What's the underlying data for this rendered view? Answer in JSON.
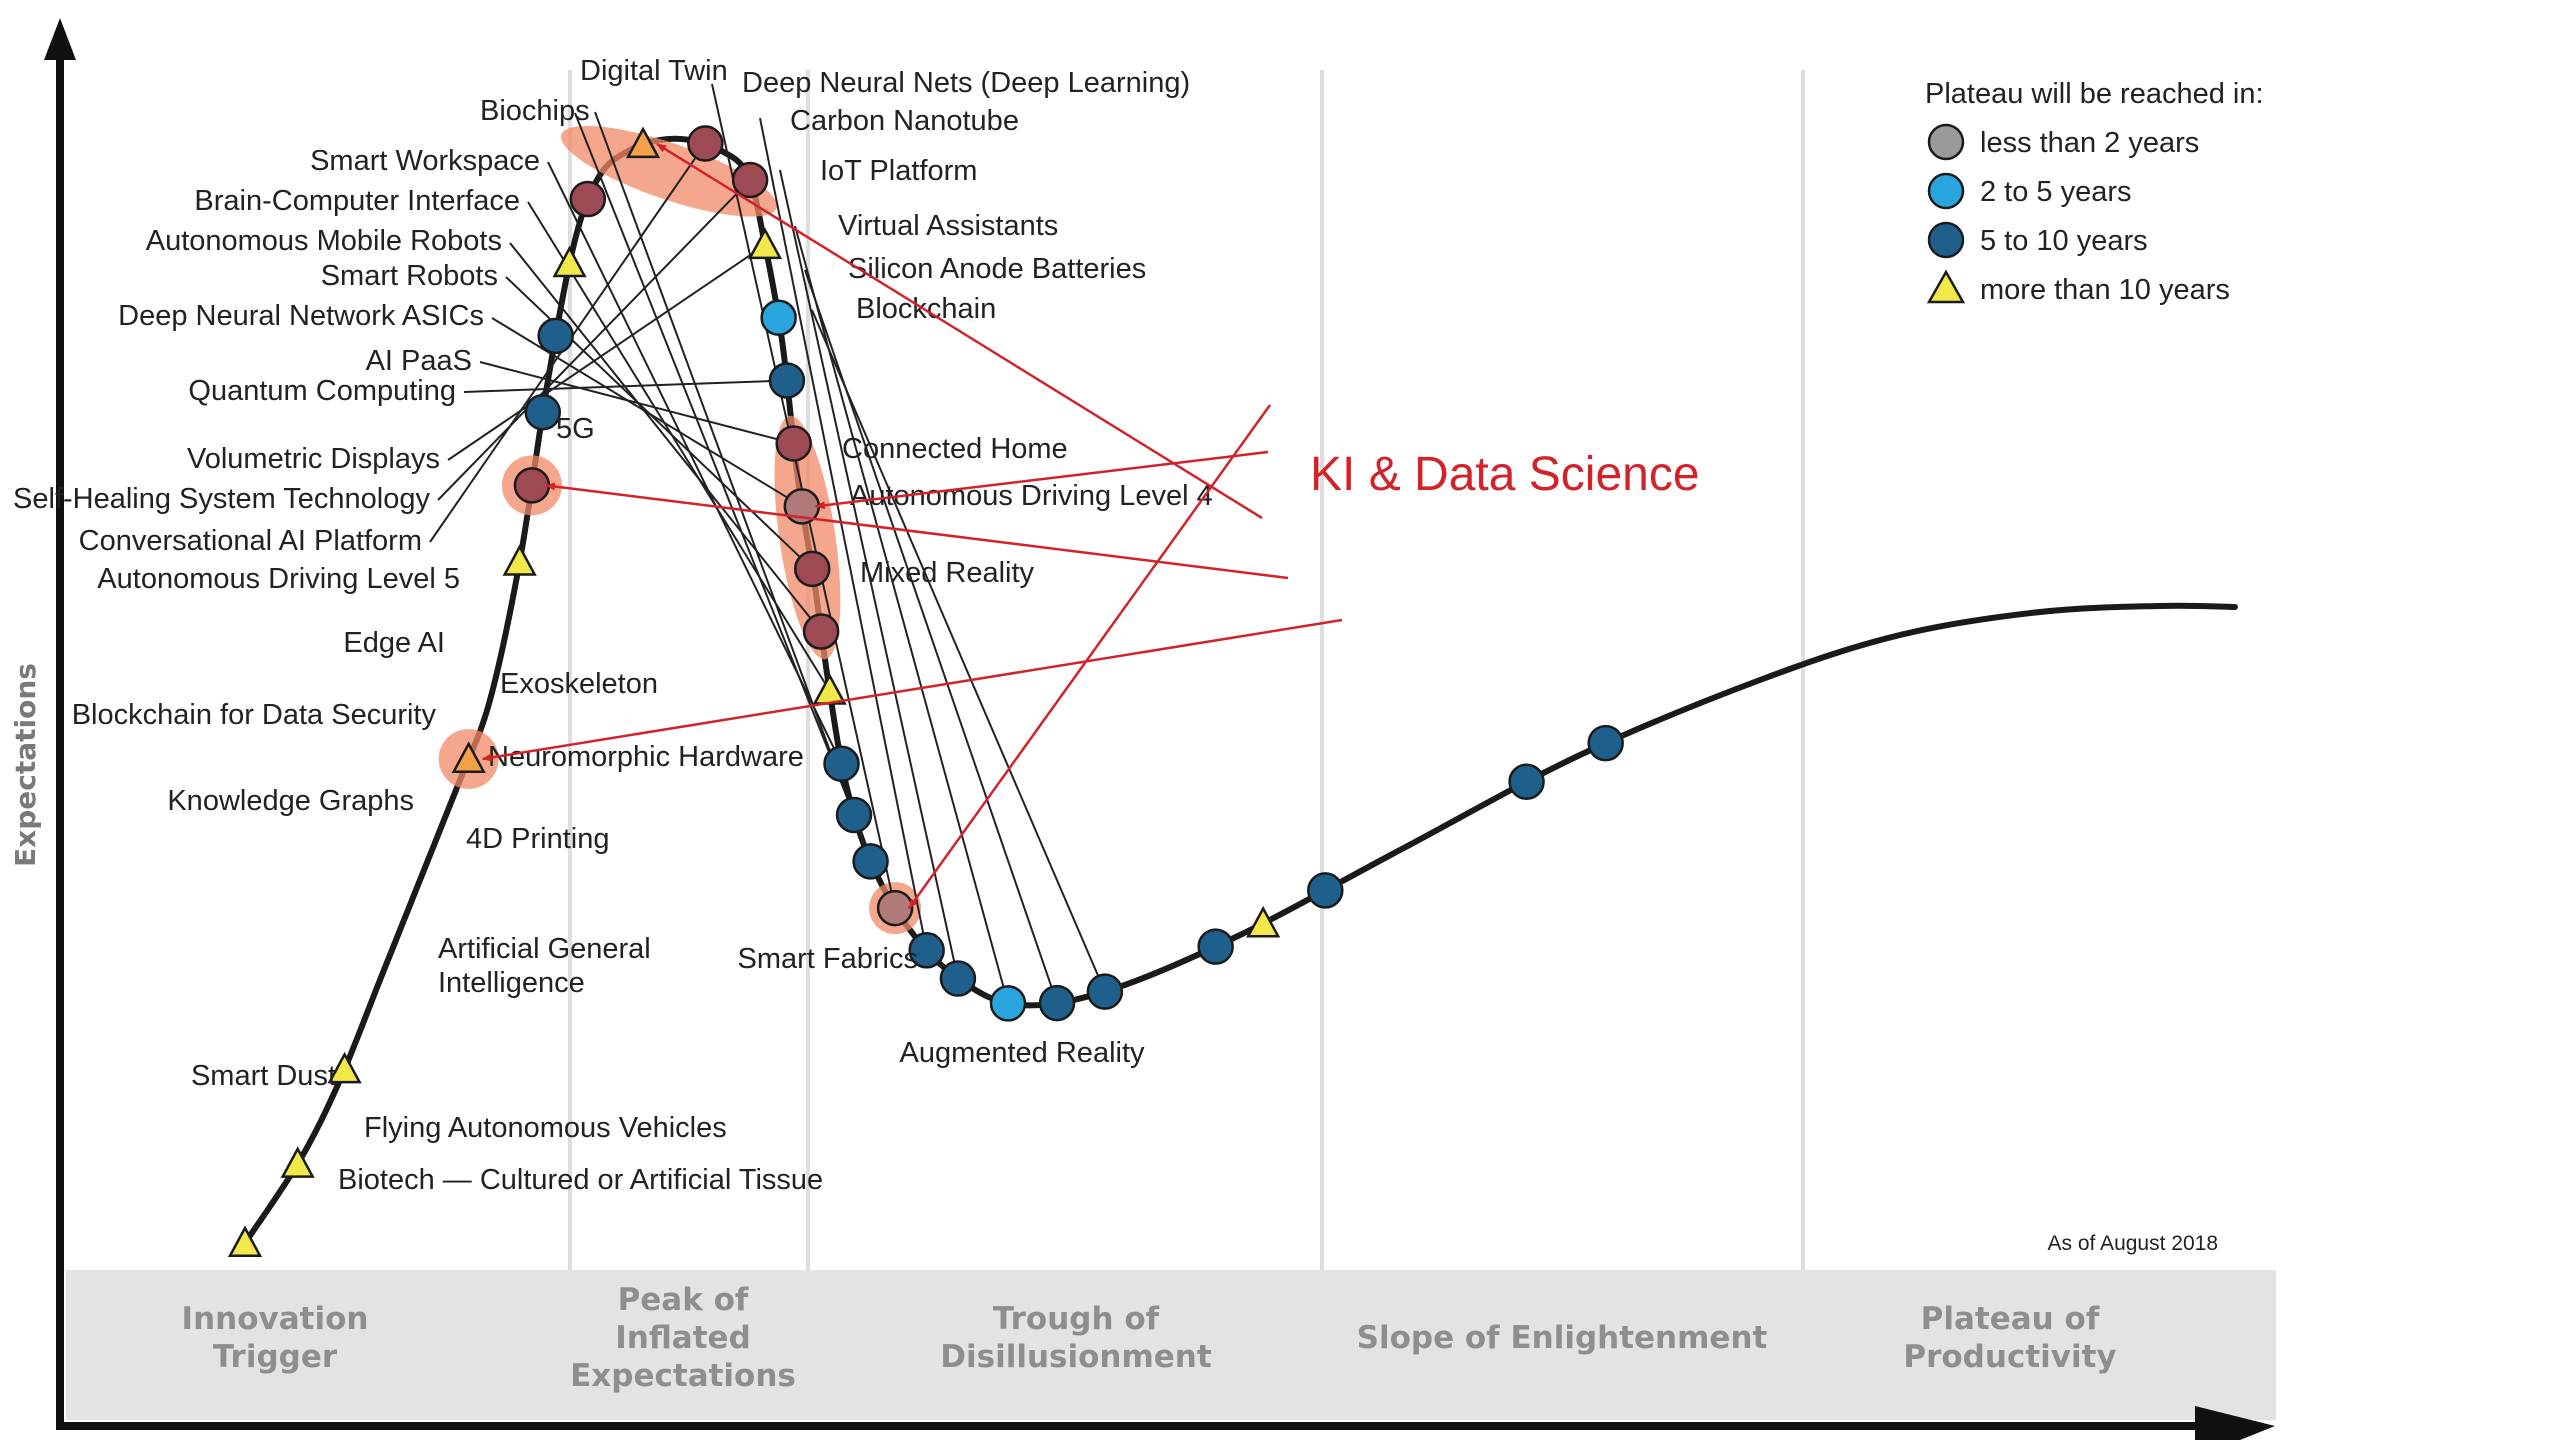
{
  "chart_data": {
    "type": "hype-cycle",
    "ylabel": "Expectations",
    "as_of": "As of August 2018",
    "annotation": "KI & Data Science",
    "colors": {
      "lt2": "#9a9a9a",
      "y2to5": "#29a5dd",
      "y5to10": "#1f5f8b",
      "gt10": "#f2e84a",
      "highlight": "#f08a65",
      "annotation": "#d0232a",
      "curve": "#1a1a1a"
    },
    "legend": {
      "title": "Plateau will be reached in:",
      "items": [
        {
          "key": "lt2",
          "label": "less than 2 years"
        },
        {
          "key": "y2to5",
          "label": "2 to 5 years"
        },
        {
          "key": "y5to10",
          "label": "5 to 10 years"
        },
        {
          "key": "gt10",
          "label": "more than 10 years"
        }
      ]
    },
    "phases": [
      {
        "line1": "Innovation",
        "line2": "Trigger",
        "line3": ""
      },
      {
        "line1": "Peak of",
        "line2": "Inflated",
        "line3": "Expectations"
      },
      {
        "line1": "Trough of",
        "line2": "Disillusionment",
        "line3": ""
      },
      {
        "line1": "Slope of Enlightenment",
        "line2": "",
        "line3": ""
      },
      {
        "line1": "Plateau of",
        "line2": "Productivity",
        "line3": ""
      }
    ],
    "technologies": [
      {
        "name": "Digital Twin",
        "t": 0.28,
        "cat": "y5to10",
        "ai": false
      },
      {
        "name": "Deep Neural Nets (Deep Learning)",
        "t": 0.293,
        "cat": "lt2",
        "ai": true
      },
      {
        "name": "Biochips",
        "t": 0.271,
        "cat": "y5to10",
        "ai": false
      },
      {
        "name": "Carbon Nanotube",
        "t": 0.306,
        "cat": "y5to10",
        "ai": false
      },
      {
        "name": "IoT Platform",
        "t": 0.313,
        "cat": "y5to10",
        "ai": false
      },
      {
        "name": "Smart Workspace",
        "t": 0.262,
        "cat": "y5to10",
        "ai": false
      },
      {
        "name": "Brain-Computer Interface",
        "t": 0.256,
        "cat": "gt10",
        "ai": false
      },
      {
        "name": "Virtual Assistants",
        "t": 0.32,
        "cat": "y2to5",
        "ai": false
      },
      {
        "name": "Autonomous Mobile Robots",
        "t": 0.251,
        "cat": "y5to10",
        "ai": true
      },
      {
        "name": "Smart Robots",
        "t": 0.246,
        "cat": "y5to10",
        "ai": true
      },
      {
        "name": "Silicon Anode Batteries",
        "t": 0.327,
        "cat": "y5to10",
        "ai": false
      },
      {
        "name": "Deep Neural Network ASICs",
        "t": 0.241,
        "cat": "lt2",
        "ai": true
      },
      {
        "name": "Blockchain",
        "t": 0.333,
        "cat": "y5to10",
        "ai": false
      },
      {
        "name": "AI PaaS",
        "t": 0.236,
        "cat": "y5to10",
        "ai": true
      },
      {
        "name": "Quantum Computing",
        "t": 0.231,
        "cat": "y5to10",
        "ai": false
      },
      {
        "name": "5G",
        "t": 0.226,
        "cat": "y2to5",
        "ai": false
      },
      {
        "name": "Connected Home",
        "t": 0.343,
        "cat": "y5to10",
        "ai": false
      },
      {
        "name": "Volumetric Displays",
        "t": 0.221,
        "cat": "gt10",
        "ai": false
      },
      {
        "name": "Autonomous Driving Level 4",
        "t": 0.348,
        "cat": "gt10",
        "ai": false
      },
      {
        "name": "Self-Healing System Technology",
        "t": 0.216,
        "cat": "y5to10",
        "ai": true
      },
      {
        "name": "Conversational AI Platform",
        "t": 0.212,
        "cat": "y5to10",
        "ai": true
      },
      {
        "name": "Autonomous Driving Level 5",
        "t": 0.207,
        "cat": "gt10",
        "ai": true
      },
      {
        "name": "Mixed Reality",
        "t": 0.356,
        "cat": "y5to10",
        "ai": false
      },
      {
        "name": "Edge AI",
        "t": 0.201,
        "cat": "y5to10",
        "ai": true
      },
      {
        "name": "Exoskeleton",
        "t": 0.196,
        "cat": "gt10",
        "ai": false
      },
      {
        "name": "Blockchain for Data Security",
        "t": 0.19,
        "cat": "y5to10",
        "ai": false
      },
      {
        "name": "Neuromorphic Hardware",
        "t": 0.183,
        "cat": "y5to10",
        "ai": false
      },
      {
        "name": "Knowledge Graphs",
        "t": 0.176,
        "cat": "y5to10",
        "ai": true
      },
      {
        "name": "4D Printing",
        "t": 0.17,
        "cat": "gt10",
        "ai": false
      },
      {
        "name": "Artificial General Intelligence",
        "t": 0.15,
        "cat": "gt10",
        "ai": true
      },
      {
        "name": "Smart Dust",
        "t": 0.105,
        "cat": "gt10",
        "ai": false
      },
      {
        "name": "Flying Autonomous Vehicles",
        "t": 0.09,
        "cat": "gt10",
        "ai": false
      },
      {
        "name": "Biotech — Cultured or Artificial Tissue",
        "t": 0.075,
        "cat": "gt10",
        "ai": false
      },
      {
        "name": "Smart Fabrics",
        "t": 0.4,
        "cat": "y5to10",
        "ai": false
      },
      {
        "name": "Augmented Reality",
        "t": 0.44,
        "cat": "y5to10",
        "ai": false
      }
    ]
  }
}
